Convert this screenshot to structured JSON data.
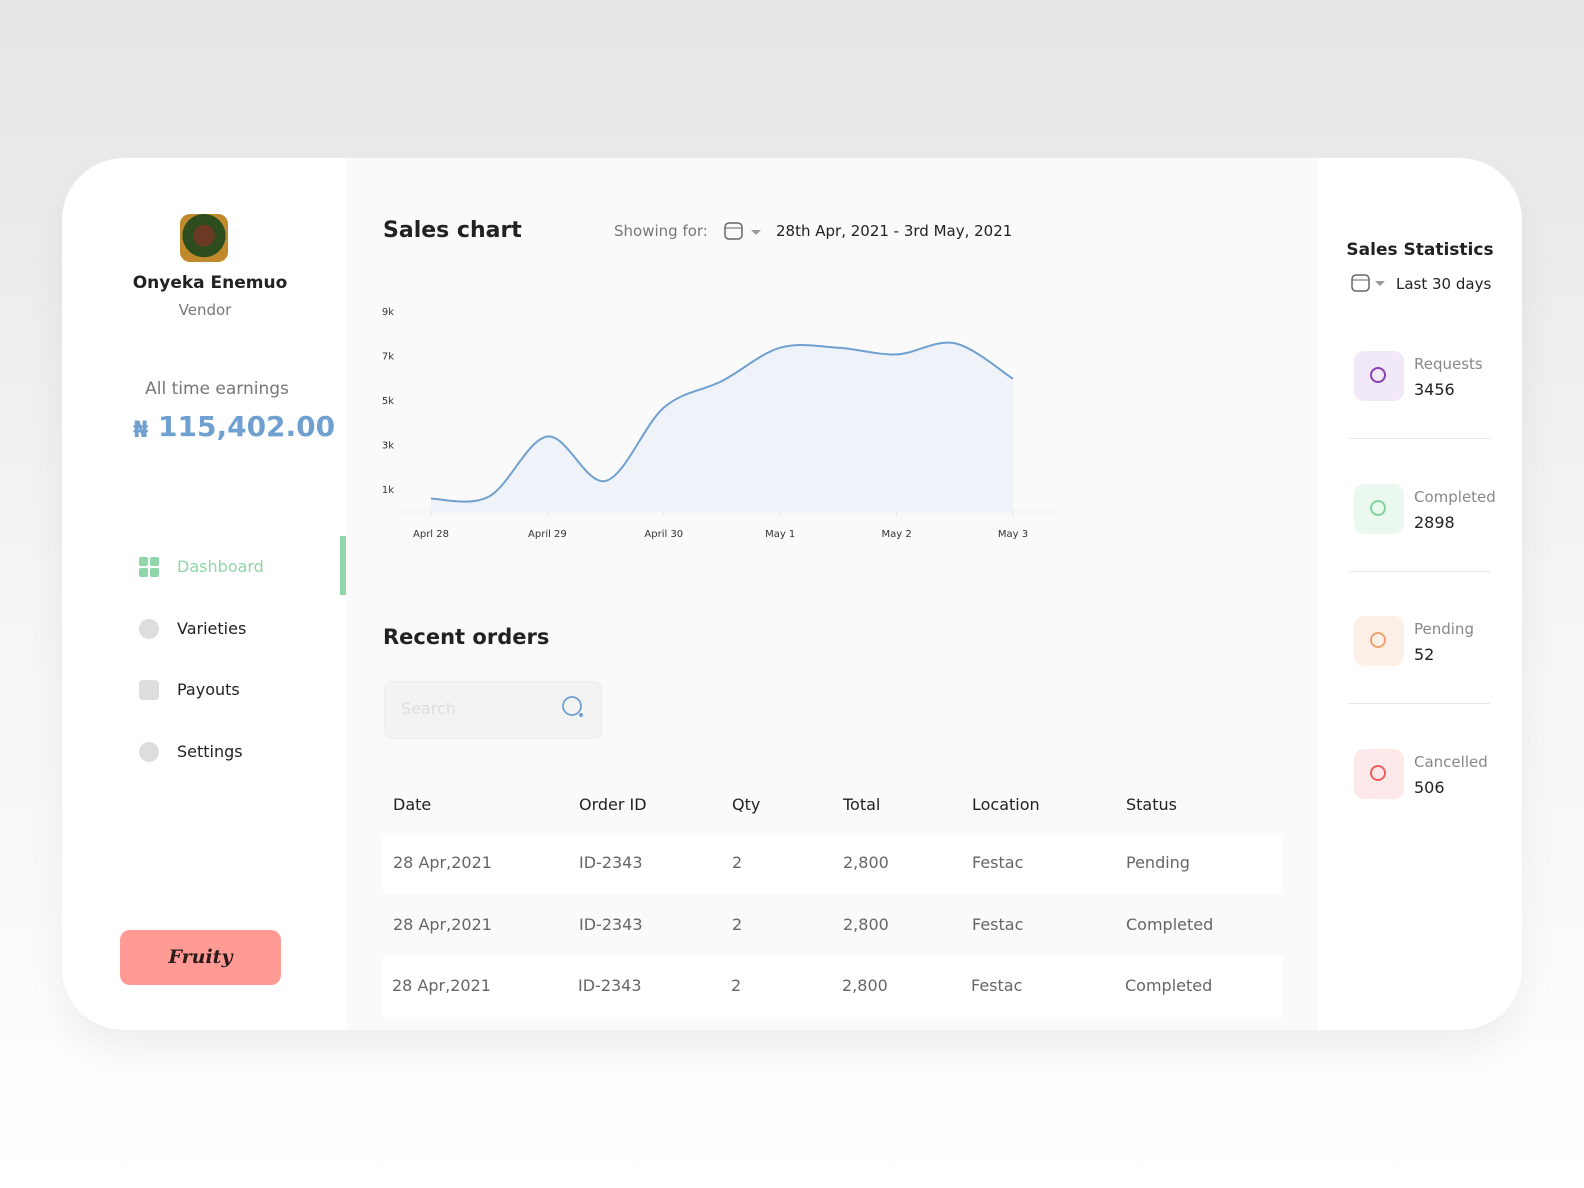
{
  "profile": {
    "name": "Onyeka Enemuo",
    "role": "Vendor"
  },
  "earnings": {
    "label": "All time earnings",
    "currency": "₦",
    "amount": "115,402.00"
  },
  "nav": [
    "Dashboard",
    "Varieties",
    "Payouts",
    "Settings"
  ],
  "brand": "Fruity",
  "sales_chart": {
    "type": "line",
    "title": "Sales chart",
    "showing_for": "Showing for:",
    "date_range": "28th Apr, 2021 - 3rd May, 2021",
    "categories": [
      "Aprl 28",
      null,
      "April 29",
      null,
      "April 30",
      null,
      "May 1",
      null,
      "May 2",
      null,
      "May 3"
    ],
    "values": [
      600,
      700,
      3400,
      1400,
      4700,
      5900,
      7400,
      7400,
      7100,
      7600,
      6000
    ],
    "color": "#6fa0d0",
    "ylim": [
      0,
      10000
    ],
    "yticks": [
      {
        "value": 1000,
        "label": "1k"
      },
      {
        "value": 3000,
        "label": "3k"
      },
      {
        "value": 5000,
        "label": "5k"
      },
      {
        "value": 7000,
        "label": "7k"
      },
      {
        "value": 9000,
        "label": "9k"
      }
    ]
  },
  "orders": {
    "title": "Recent orders",
    "search_placeholder": "Search",
    "columns": [
      "Date",
      "Order ID",
      "Qty",
      "Total",
      "Location",
      "Status"
    ],
    "rows": [
      [
        "28 Apr,2021",
        "ID-2343",
        "2",
        "2,800",
        "Festac",
        "Pending"
      ],
      [
        "28 Apr,2021",
        "ID-2343",
        "2",
        "2,800",
        "Festac",
        "Completed"
      ],
      [
        "28 Apr,2021",
        "ID-2343",
        "2",
        "2,800",
        "Festac",
        "Completed"
      ]
    ]
  },
  "stats": {
    "title": "Sales Statistics",
    "period": "Last 30 days",
    "items": [
      {
        "label": "Requests",
        "value": "3456"
      },
      {
        "label": "Completed",
        "value": "2898"
      },
      {
        "label": "Pending",
        "value": "52"
      },
      {
        "label": "Cancelled",
        "value": "506"
      }
    ]
  }
}
